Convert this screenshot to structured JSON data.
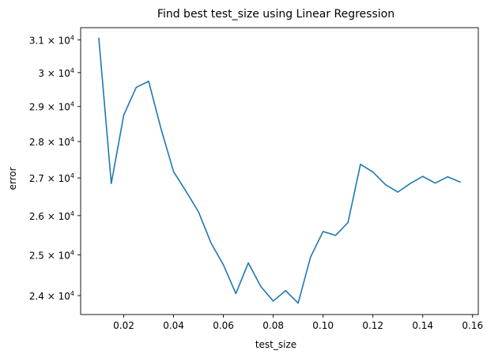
{
  "chart_data": {
    "type": "line",
    "title": "Find best test_size using Linear Regression",
    "xlabel": "test_size",
    "ylabel": "error",
    "xlim": [
      0.0027,
      0.1623
    ],
    "ylim": [
      23550,
      31380
    ],
    "yscale": "log",
    "grid": false,
    "x_ticks": [
      0.02,
      0.04,
      0.06,
      0.08,
      0.1,
      0.12,
      0.14,
      0.16
    ],
    "x_tick_labels": [
      "0.02",
      "0.04",
      "0.06",
      "0.08",
      "0.10",
      "0.12",
      "0.14",
      "0.16"
    ],
    "y_ticks": [
      {
        "value": 24000,
        "mantissa": "2.4"
      },
      {
        "value": 25000,
        "mantissa": "2.5"
      },
      {
        "value": 26000,
        "mantissa": "2.6"
      },
      {
        "value": 27000,
        "mantissa": "2.7"
      },
      {
        "value": 28000,
        "mantissa": "2.8"
      },
      {
        "value": 29000,
        "mantissa": "2.9"
      },
      {
        "value": 30000,
        "mantissa": "3"
      },
      {
        "value": 31000,
        "mantissa": "3.1"
      }
    ],
    "y_tick_base": "10",
    "y_tick_exponent": "4",
    "series": [
      {
        "color": "#1f77b4",
        "x": [
          0.01,
          0.015,
          0.02,
          0.025,
          0.03,
          0.035,
          0.04,
          0.045,
          0.05,
          0.055,
          0.06,
          0.065,
          0.07,
          0.075,
          0.08,
          0.085,
          0.09,
          0.095,
          0.1,
          0.105,
          0.11,
          0.115,
          0.12,
          0.125,
          0.13,
          0.135,
          0.14,
          0.145,
          0.15,
          0.155
        ],
        "y": [
          31050,
          26850,
          28750,
          29560,
          29740,
          28350,
          27170,
          26640,
          26100,
          25300,
          24750,
          24050,
          24800,
          24220,
          23870,
          24120,
          23820,
          24950,
          25590,
          25490,
          25820,
          27370,
          27160,
          26820,
          26620,
          26850,
          27040,
          26860,
          27030,
          26890
        ]
      }
    ]
  }
}
